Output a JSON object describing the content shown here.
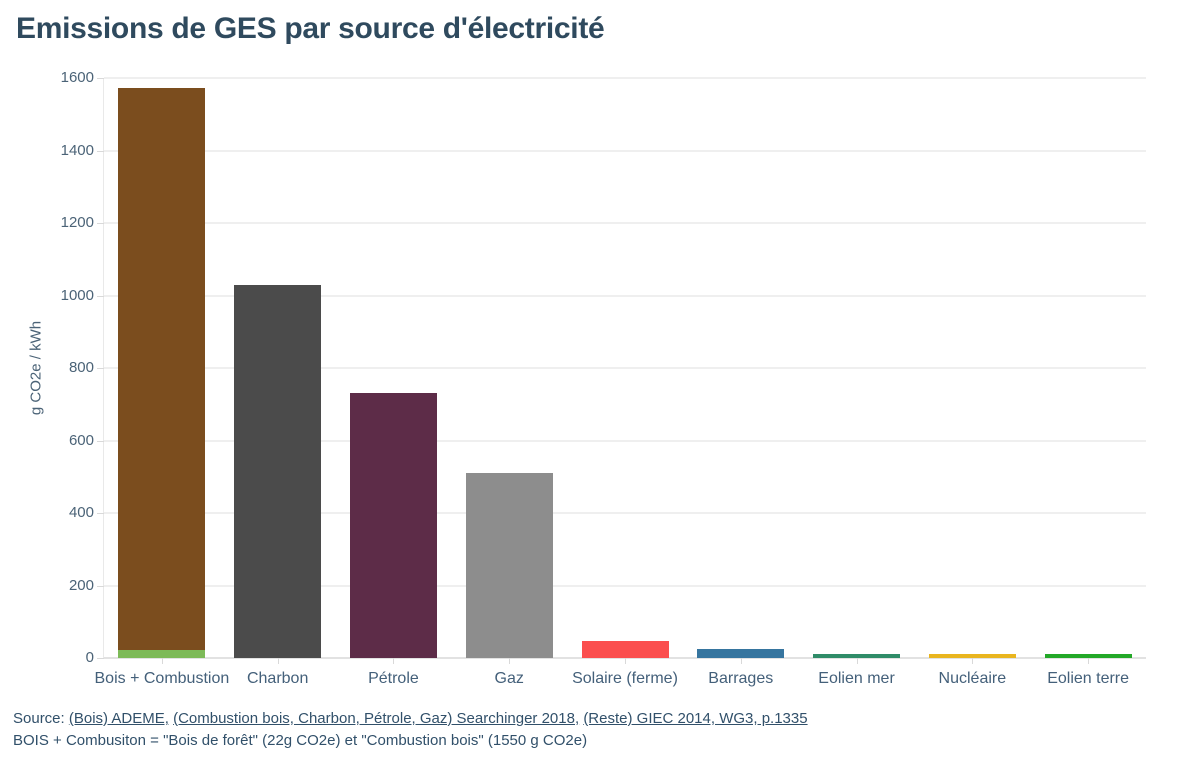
{
  "page": {
    "title": "Emissions de GES par source d'électricité"
  },
  "chart_data": {
    "type": "bar",
    "stacked": true,
    "title": "Emissions de GES par source d'électricité",
    "xlabel": "",
    "ylabel": "g CO2e / kWh",
    "ylim": [
      0,
      1600
    ],
    "ytick_step": 200,
    "grid": true,
    "legend": "none",
    "categories": [
      "Bois + Combustion",
      "Charbon",
      "Pétrole",
      "Gaz",
      "Solaire (ferme)",
      "Barrages",
      "Eolien mer",
      "Nucléaire",
      "Eolien terre"
    ],
    "bars": [
      {
        "label": "Bois + Combustion",
        "total": 1572,
        "segments": [
          {
            "name": "Bois de forêt",
            "value": 22,
            "color": "#7dba58"
          },
          {
            "name": "Combustion bois",
            "value": 1550,
            "color": "#7b4d1e"
          }
        ]
      },
      {
        "label": "Charbon",
        "total": 1030,
        "segments": [
          {
            "name": "Charbon",
            "value": 1030,
            "color": "#4b4b4b"
          }
        ]
      },
      {
        "label": "Pétrole",
        "total": 730,
        "segments": [
          {
            "name": "Pétrole",
            "value": 730,
            "color": "#5d2c48"
          }
        ]
      },
      {
        "label": "Gaz",
        "total": 510,
        "segments": [
          {
            "name": "Gaz",
            "value": 510,
            "color": "#8d8d8d"
          }
        ]
      },
      {
        "label": "Solaire (ferme)",
        "total": 48,
        "segments": [
          {
            "name": "Solaire (ferme)",
            "value": 48,
            "color": "#fb4e4e"
          }
        ]
      },
      {
        "label": "Barrages",
        "total": 24,
        "segments": [
          {
            "name": "Barrages",
            "value": 24,
            "color": "#36759f"
          }
        ]
      },
      {
        "label": "Eolien mer",
        "total": 12,
        "segments": [
          {
            "name": "Eolien mer",
            "value": 12,
            "color": "#2f8c68"
          }
        ]
      },
      {
        "label": "Nucléaire",
        "total": 12,
        "segments": [
          {
            "name": "Nucléaire",
            "value": 12,
            "color": "#e9b51f"
          }
        ]
      },
      {
        "label": "Eolien terre",
        "total": 11,
        "segments": [
          {
            "name": "Eolien terre",
            "value": 11,
            "color": "#23a828"
          }
        ]
      }
    ]
  },
  "footer": {
    "source_prefix": "Source:",
    "links": [
      {
        "text": "(Bois) ADEME,",
        "suffix": " "
      },
      {
        "text": "(Combustion bois, Charbon, Pétrole, Gaz) Searchinger 2018,",
        "suffix": " "
      },
      {
        "text": "(Reste) GIEC 2014, WG3, p.1335",
        "suffix": ""
      }
    ],
    "note": "BOIS + Combusiton = \"Bois de forêt\" (22g CO2e) et \"Combustion bois\" (1550 g CO2e)"
  },
  "colors": {
    "title_text": "#2f4a5e",
    "axis_text": "#4b6377",
    "gridline": "#efefef",
    "footer_text": "#31506a",
    "background": "#ffffff"
  }
}
